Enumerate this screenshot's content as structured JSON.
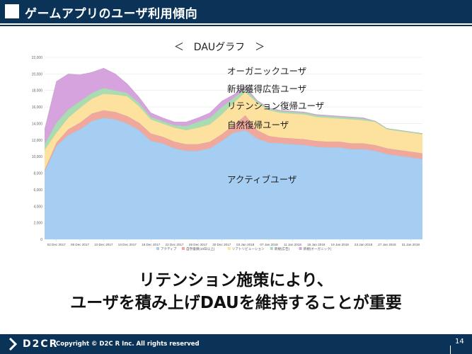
{
  "header": {
    "title": "ゲームアプリのユーザ利用傾向"
  },
  "chart_heading": "＜　DAUグラフ　＞",
  "chart_data": {
    "type": "area",
    "stacked": true,
    "title": "＜　DAUグラフ　＞",
    "ylim": [
      0,
      22000
    ],
    "y_ticks": [
      "0",
      "2,000",
      "4,000",
      "6,000",
      "8,000",
      "10,000",
      "12,000",
      "14,000",
      "16,000",
      "18,000",
      "20,000",
      "22,000"
    ],
    "x_tick_labels": [
      "02 Dec 2017",
      "06 Dec 2017",
      "10 Dec 2017",
      "14 Dec 2017",
      "18 Dec 2017",
      "22 Dec 2017",
      "26 Dec 2017",
      "30 Dec 2017",
      "03 Jan 2018",
      "07 Jan 2018",
      "11 Jan 2018",
      "15 Jan 2018",
      "19 Jan 2018",
      "23 Jan 2018",
      "27 Jan 2018",
      "31 Jan 2018"
    ],
    "x": [
      "01 Dec",
      "02 Dec",
      "04 Dec",
      "06 Dec",
      "08 Dec",
      "10 Dec",
      "12 Dec",
      "14 Dec",
      "16 Dec",
      "18 Dec",
      "20 Dec",
      "22 Dec",
      "24 Dec",
      "26 Dec",
      "28 Dec",
      "30 Dec",
      "01 Jan",
      "03 Jan",
      "05 Jan",
      "07 Jan",
      "09 Jan",
      "11 Jan",
      "13 Jan",
      "15 Jan",
      "17 Jan",
      "19 Jan",
      "21 Jan",
      "23 Jan",
      "25 Jan",
      "27 Jan",
      "29 Jan",
      "31 Jan",
      "02 Feb"
    ],
    "series": [
      {
        "name": "アクティブ",
        "color": "#a6cdf2",
        "values": [
          8200,
          11300,
          12600,
          13300,
          14300,
          14700,
          14500,
          14000,
          13200,
          11900,
          11600,
          11000,
          10700,
          10700,
          11000,
          11900,
          12900,
          13200,
          12200,
          11700,
          11600,
          11500,
          11400,
          11200,
          11100,
          11100,
          10900,
          10900,
          10700,
          10300,
          10100,
          9900,
          9700
        ]
      },
      {
        "name": "自然復帰(10日以上)",
        "color": "#f1a89c",
        "values": [
          200,
          400,
          700,
          800,
          900,
          900,
          900,
          900,
          900,
          900,
          800,
          800,
          800,
          800,
          800,
          800,
          900,
          1800,
          1000,
          800,
          700,
          700,
          700,
          700,
          700,
          700,
          700,
          700,
          700,
          700,
          700,
          700,
          700
        ]
      },
      {
        "name": "リアトリビューション",
        "color": "#fde29f",
        "values": [
          2400,
          1200,
          1400,
          1800,
          1800,
          2000,
          2100,
          2400,
          2000,
          1700,
          1600,
          1700,
          1700,
          2000,
          2100,
          2400,
          2700,
          2800,
          3300,
          3100,
          3000,
          3000,
          3000,
          2900,
          2900,
          2800,
          2900,
          2800,
          2800,
          2300,
          2300,
          2300,
          2300
        ]
      },
      {
        "name": "新規(広告)",
        "color": "#a9dcb0",
        "values": [
          700,
          1200,
          1000,
          800,
          700,
          700,
          500,
          400,
          400,
          300,
          300,
          300,
          500,
          700,
          800,
          900,
          600,
          400,
          200,
          200,
          200,
          200,
          200,
          200,
          200,
          200,
          200,
          200,
          100,
          100,
          100,
          100,
          100
        ]
      },
      {
        "name": "新規(オーガニック)",
        "color": "#d6a3de",
        "values": [
          1800,
          5000,
          4300,
          3200,
          2500,
          2400,
          2000,
          1100,
          700,
          500,
          400,
          400,
          500,
          500,
          600,
          700,
          400,
          300,
          100,
          100,
          100,
          100,
          100,
          100,
          100,
          100,
          100,
          100,
          0,
          0,
          0,
          0,
          0
        ]
      }
    ],
    "annotations": [
      "オーガニックユーザ",
      "新規獲得広告ユーザ",
      "リテンション復帰ユーザ",
      "自然復帰ユーザ",
      "アクティブユーザ"
    ],
    "legend_position": "bottom"
  },
  "message": {
    "line1": "リテンション施策により、",
    "line2": "ユーザを積み上げDAUを維持することが重要"
  },
  "footer": {
    "logo": "D2CR",
    "copyright": "Copyright © D2C R Inc. All rights reserved",
    "page_number": "14"
  },
  "colors": {
    "brand_navy": "#0b3358"
  }
}
